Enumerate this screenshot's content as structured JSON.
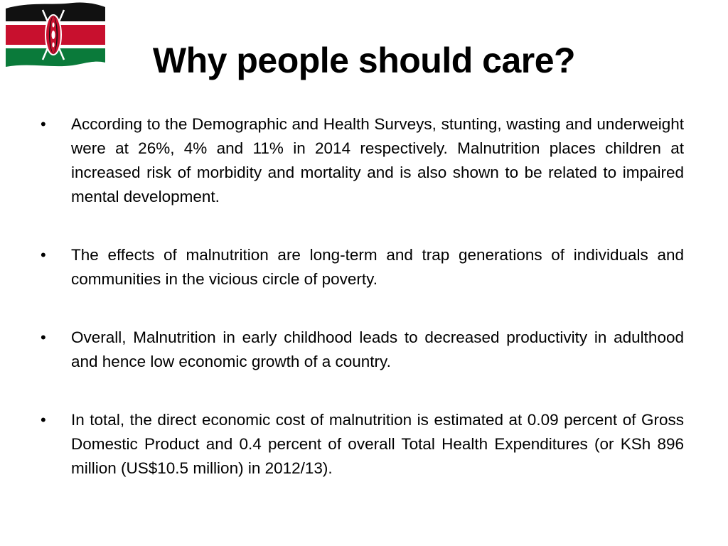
{
  "slide": {
    "title": "Why people should care?",
    "flag_icon": "kenya-flag-icon",
    "bullet_glyph": "•",
    "bullets": [
      "According to the Demographic and Health Surveys, stunting, wasting and underweight were at 26%, 4% and 11% in 2014 respectively.  Malnutrition places children at increased risk of morbidity and mortality and is also shown to be related to impaired mental development.",
      "The effects of malnutrition are long-term and trap generations of individuals and communities in the vicious circle of poverty.",
      "Overall, Malnutrition in early childhood leads to decreased productivity in adulthood and hence low economic growth of a country.",
      "In total, the direct economic cost of malnutrition is estimated at 0.09 percent of Gross Domestic Product and 0.4 percent of overall Total Health Expenditures (or KSh 896 million (US$10.5 million) in 2012/13)."
    ]
  },
  "colors": {
    "flag_black": "#111111",
    "flag_red": "#c8102e",
    "flag_green": "#0a7a3a",
    "flag_white": "#ffffff"
  }
}
